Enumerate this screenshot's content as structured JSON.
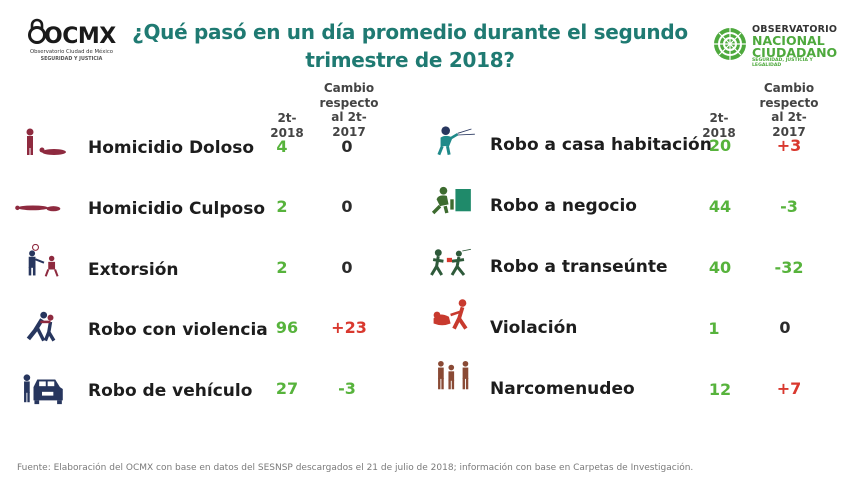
{
  "title_line1": "¿Qué pasó en un día promedio durante el segundo",
  "title_line2": "trimestre de 2018?",
  "ocmx": {
    "wordmark": "OCMX",
    "subtitle": "Observatorio Ciudad de México",
    "tagline": "SEGURIDAD Y JUSTICIA"
  },
  "onc": {
    "line1": "OBSERVATORIO",
    "line2": "NACIONAL",
    "line3": "CIUDADANO",
    "tagline": "SEGURIDAD, JUSTICIA Y LEGALIDAD"
  },
  "headers": {
    "left": {
      "period": "2t-2018",
      "change": "Cambio respecto al 2t-2017"
    },
    "right": {
      "period": "2t-2018",
      "change": "Cambio respecto al 2t-2017"
    }
  },
  "left_rows": [
    {
      "icon": "homicide-icon",
      "name": "Homicidio Doloso",
      "value": "4",
      "change": "0"
    },
    {
      "icon": "culpable-homicide-icon",
      "name": "Homicidio Culposo",
      "value": "2",
      "change": "0"
    },
    {
      "icon": "extortion-icon",
      "name": "Extorsión",
      "value": "2",
      "change": "0"
    },
    {
      "icon": "violent-robbery-icon",
      "name": "Robo con violencia",
      "value": "96",
      "change": "+23"
    },
    {
      "icon": "car-theft-icon",
      "name": "Robo de vehículo",
      "value": "27",
      "change": "-3"
    }
  ],
  "right_rows": [
    {
      "icon": "burglary-icon",
      "name": "Robo a casa habitación",
      "value": "20",
      "change": "+3"
    },
    {
      "icon": "business-robbery-icon",
      "name": "Robo a negocio",
      "value": "44",
      "change": "-3"
    },
    {
      "icon": "pedestrian-robbery-icon",
      "name": "Robo a transeúnte",
      "value": "40",
      "change": "-32"
    },
    {
      "icon": "rape-icon",
      "name": "Violación",
      "value": "1",
      "change": "0"
    },
    {
      "icon": "drug-dealing-icon",
      "name": "Narcomenudeo",
      "value": "12",
      "change": "+7"
    }
  ],
  "footer": "Fuente: Elaboración del OCMX con base en datos del SESNSP descargados el 21 de julio de 2018; información con base en Carpetas de Investigación.",
  "colors": {
    "title": "#1f7a72",
    "positive_change": "#d9382e",
    "negative_change": "#57b33c",
    "value": "#57b33c",
    "icon_maroon": "#8e2a3f",
    "icon_navy": "#27365e"
  }
}
